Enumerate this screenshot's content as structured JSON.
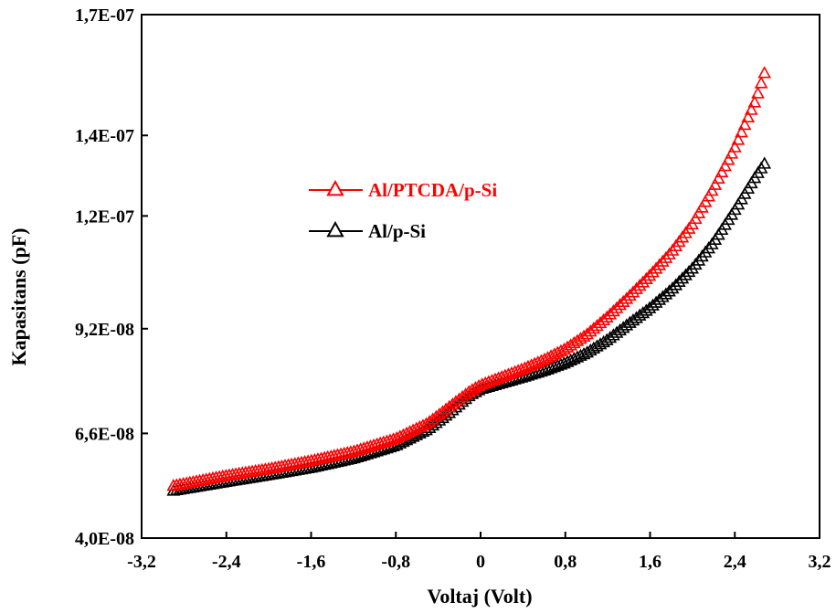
{
  "chart_data": {
    "type": "scatter",
    "xlabel": "Voltaj  (Volt)",
    "ylabel": "Kapasitans (pF)",
    "xlim": [
      -3.2,
      3.2
    ],
    "ylim": [
      4e-08,
      1.7e-07
    ],
    "x_ticks": [
      -3.2,
      -2.4,
      -1.6,
      -0.8,
      0,
      0.8,
      1.6,
      2.4,
      3.2
    ],
    "x_tick_labels": [
      "-3,2",
      "-2,4",
      "-1,6",
      "-0,8",
      "0",
      "0,8",
      "1,6",
      "2,4",
      "3,2"
    ],
    "y_ticks": [
      4e-08,
      6.6e-08,
      9.2e-08,
      1.2e-07,
      1.4e-07,
      1.7e-07
    ],
    "y_tick_labels": [
      "4,0E-08",
      "6,6E-08",
      "9,2E-08",
      "1,2E-07",
      "1,4E-07",
      "1,7E-07"
    ],
    "legend_position": "center-left",
    "grid": false,
    "marker": "open-triangle",
    "series": [
      {
        "name": "Al/PTCDA/p-Si",
        "color": "#ff0000",
        "label_color": "#ff0000",
        "x": [
          -2.9,
          -2.4,
          -2.0,
          -1.6,
          -1.2,
          -0.8,
          -0.5,
          -0.3,
          -0.1,
          0.0,
          0.2,
          0.4,
          0.6,
          0.8,
          1.0,
          1.2,
          1.4,
          1.6,
          1.8,
          2.0,
          2.2,
          2.4,
          2.6,
          2.68
        ],
        "y": [
          5.3e-08,
          5.55e-08,
          5.72e-08,
          5.92e-08,
          6.15e-08,
          6.47e-08,
          6.85e-08,
          7.25e-08,
          7.65e-08,
          7.8e-08,
          8e-08,
          8.2e-08,
          8.43e-08,
          8.7e-08,
          9.05e-08,
          9.5e-08,
          1e-07,
          1.053e-07,
          1.11e-07,
          1.18e-07,
          1.27e-07,
          1.37e-07,
          1.49e-07,
          1.555e-07
        ]
      },
      {
        "name": "Al/p-Si",
        "color": "#000000",
        "label_color": "#000000",
        "x": [
          -2.9,
          -2.4,
          -2.0,
          -1.6,
          -1.2,
          -0.8,
          -0.5,
          -0.3,
          -0.1,
          0.0,
          0.2,
          0.4,
          0.6,
          0.8,
          1.0,
          1.2,
          1.4,
          1.6,
          1.8,
          2.0,
          2.2,
          2.4,
          2.6,
          2.68
        ],
        "y": [
          5.18e-08,
          5.4e-08,
          5.57e-08,
          5.75e-08,
          5.98e-08,
          6.3e-08,
          6.7e-08,
          7.1e-08,
          7.55e-08,
          7.7e-08,
          7.85e-08,
          8e-08,
          8.16e-08,
          8.35e-08,
          8.6e-08,
          8.93e-08,
          9.33e-08,
          9.72e-08,
          1.017e-07,
          1.07e-07,
          1.135e-07,
          1.215e-07,
          1.3e-07,
          1.33e-07
        ]
      }
    ]
  }
}
